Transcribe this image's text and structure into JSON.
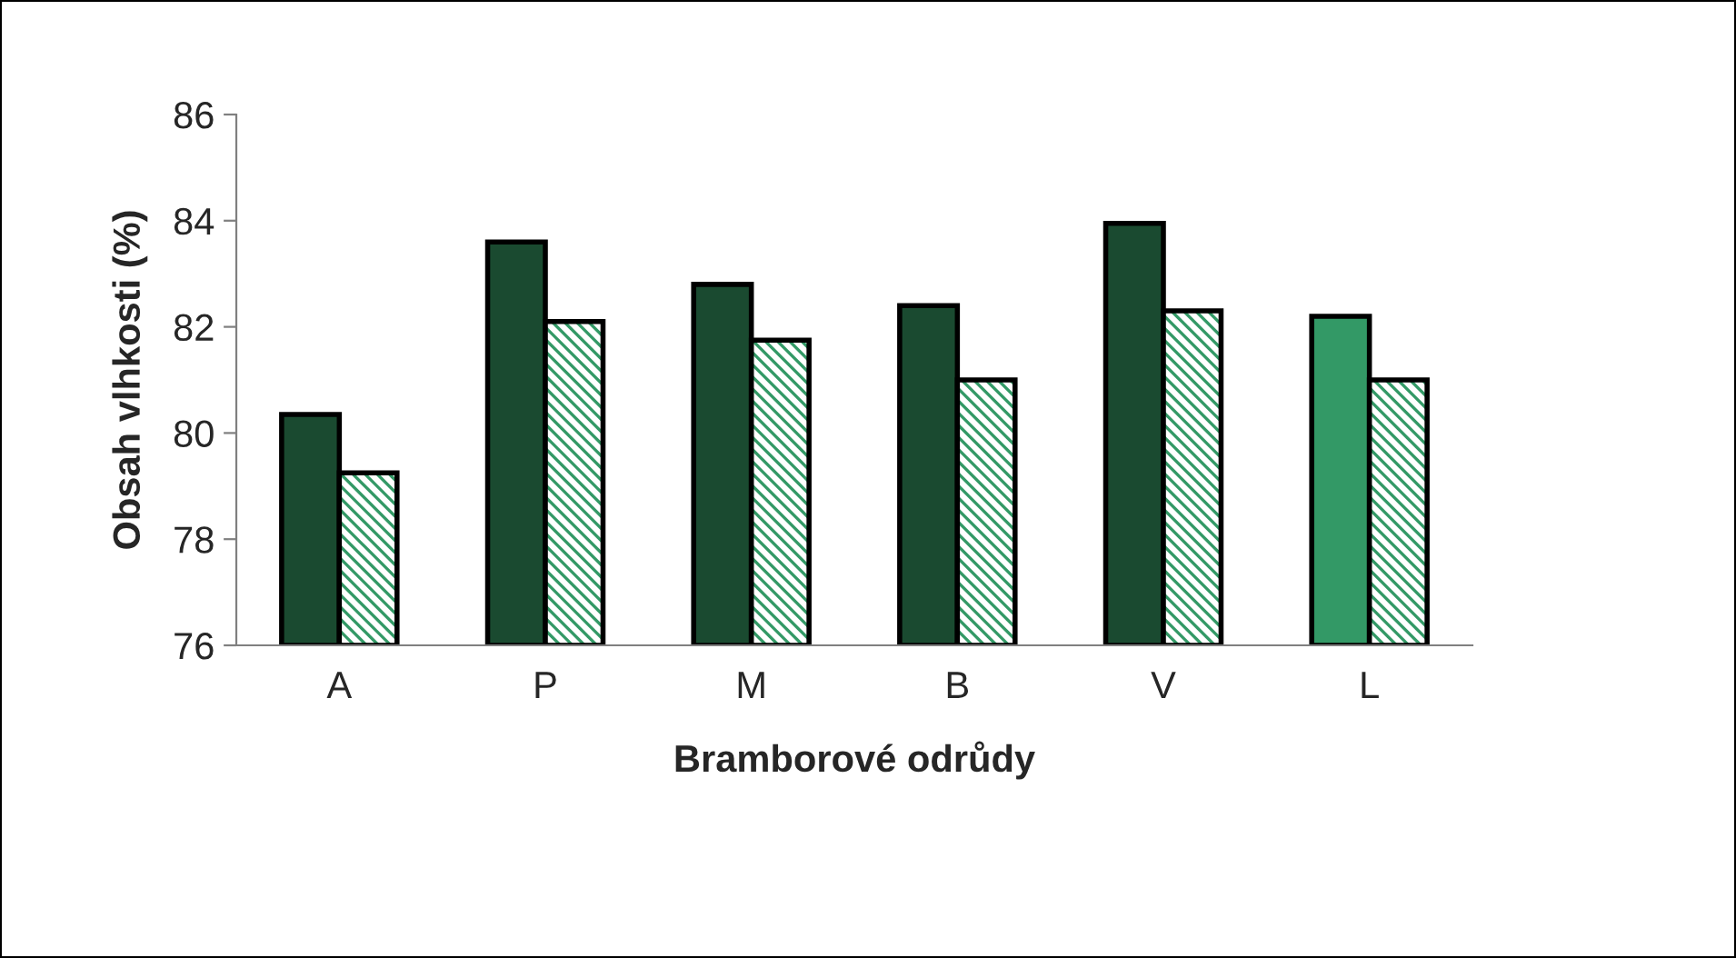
{
  "chart_data": {
    "type": "bar",
    "xlabel": "Bramborové odrůdy",
    "ylabel": "Obsah vlhkosti (%)",
    "categories": [
      "A",
      "P",
      "M",
      "B",
      "V",
      "L"
    ],
    "series": [
      {
        "colors": [
          "#1a4a30",
          "#1a4a30",
          "#1a4a30",
          "#1a4a30",
          "#1a4a30",
          "#339966"
        ],
        "values": [
          80.35,
          83.6,
          82.8,
          82.4,
          83.95,
          82.2
        ]
      },
      {
        "color": "#339966",
        "values": [
          79.25,
          82.1,
          81.75,
          81.0,
          82.3,
          81.0
        ]
      }
    ],
    "ylim": [
      76,
      86
    ],
    "yticks": [
      76,
      78,
      80,
      82,
      84,
      86
    ],
    "grid": false,
    "legend": false
  }
}
